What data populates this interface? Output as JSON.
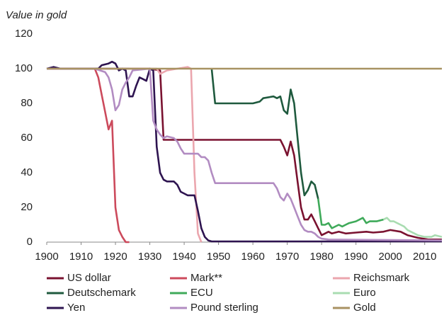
{
  "chart_data": {
    "type": "line",
    "ylabel": "Value in gold",
    "xlim": [
      1900,
      2015
    ],
    "ylim": [
      0,
      120
    ],
    "xticks": [
      1900,
      1910,
      1920,
      1930,
      1940,
      1950,
      1960,
      1970,
      1980,
      1990,
      2000,
      2010
    ],
    "yticks": [
      0,
      20,
      40,
      60,
      80,
      100,
      120
    ],
    "grid": false,
    "legend": "bottom",
    "series": [
      {
        "name": "US dollar",
        "color": "#7a1230",
        "x": [
          1900,
          1910,
          1920,
          1930,
          1933,
          1934,
          1968,
          1969,
          1970,
          1971,
          1972,
          1973,
          1974,
          1975,
          1976,
          1977,
          1978,
          1979,
          1980,
          1981,
          1982,
          1983,
          1985,
          1987,
          1990,
          1993,
          1995,
          1998,
          2000,
          2003,
          2005,
          2008,
          2011,
          2015
        ],
        "values": [
          100,
          100,
          100,
          100,
          99,
          59,
          59,
          55,
          50,
          58,
          50,
          35,
          20,
          13,
          13,
          16,
          12,
          8,
          4,
          5,
          6,
          5,
          6,
          5,
          5.5,
          6,
          5.5,
          6,
          7,
          6,
          4,
          2.5,
          1.5,
          1.5
        ]
      },
      {
        "name": "Mark**",
        "color": "#cc4a5c",
        "x": [
          1900,
          1914,
          1915,
          1916,
          1917,
          1918,
          1919,
          1920,
          1921,
          1922,
          1923,
          1924
        ],
        "values": [
          100,
          100,
          95,
          85,
          75,
          65,
          70,
          20,
          7,
          3,
          0,
          0
        ]
      },
      {
        "name": "Reichsmark",
        "color": "#eba6ae",
        "x": [
          1924,
          1932,
          1933,
          1935,
          1938,
          1941,
          1942,
          1943,
          1944,
          1945
        ],
        "values": [
          100,
          100,
          97,
          99,
          100,
          101,
          100,
          40,
          5,
          0
        ]
      },
      {
        "name": "Deutschemark",
        "color": "#1f5a3e",
        "x": [
          1948,
          1949,
          1960,
          1962,
          1963,
          1966,
          1967,
          1968,
          1969,
          1970,
          1971,
          1972,
          1973,
          1974,
          1975,
          1976,
          1977,
          1978,
          1979
        ],
        "values": [
          100,
          80,
          80,
          81,
          83,
          84,
          83,
          84,
          76,
          74,
          88,
          80,
          60,
          40,
          27,
          30,
          35,
          33,
          25
        ]
      },
      {
        "name": "ECU",
        "color": "#3faa5a",
        "x": [
          1979,
          1980,
          1981,
          1982,
          1983,
          1984,
          1985,
          1986,
          1987,
          1988,
          1990,
          1992,
          1993,
          1994,
          1996,
          1998
        ],
        "values": [
          25,
          10,
          10,
          11,
          8,
          9,
          10,
          9,
          10,
          11,
          12,
          14,
          11,
          12,
          12,
          13
        ]
      },
      {
        "name": "Euro",
        "color": "#a9dcb1",
        "x": [
          1998,
          1999,
          2000,
          2001,
          2002,
          2003,
          2004,
          2005,
          2006,
          2008,
          2010,
          2012,
          2013,
          2015
        ],
        "values": [
          13,
          14,
          12,
          12,
          11,
          10,
          9,
          7,
          6,
          4,
          3,
          3,
          4,
          3
        ]
      },
      {
        "name": "Yen",
        "color": "#2e1450",
        "x": [
          1900,
          1902,
          1904,
          1910,
          1915,
          1916,
          1918,
          1919,
          1920,
          1921,
          1922,
          1923,
          1924,
          1925,
          1926,
          1927,
          1928,
          1929,
          1930,
          1931,
          1932,
          1933,
          1934,
          1935,
          1937,
          1938,
          1939,
          1940,
          1941,
          1943,
          1944,
          1945,
          1946,
          1947,
          1948,
          2015
        ],
        "values": [
          100,
          101,
          100,
          100,
          100,
          102,
          103,
          104,
          103,
          99,
          100,
          99,
          84,
          84,
          90,
          95,
          94,
          93,
          100,
          99,
          55,
          40,
          36,
          35,
          35,
          33,
          29,
          28,
          27,
          27,
          18,
          8,
          3,
          1,
          0.4,
          0.4
        ]
      },
      {
        "name": "Pound sterling",
        "color": "#b28cc2",
        "x": [
          1900,
          1914,
          1917,
          1918,
          1919,
          1920,
          1921,
          1922,
          1923,
          1924,
          1925,
          1930,
          1931,
          1932,
          1933,
          1934,
          1935,
          1937,
          1938,
          1939,
          1940,
          1944,
          1945,
          1946,
          1947,
          1948,
          1949,
          1966,
          1967,
          1968,
          1969,
          1970,
          1971,
          1972,
          1973,
          1974,
          1975,
          1976,
          1977,
          1978,
          1979,
          1980,
          1982,
          2015
        ],
        "values": [
          100,
          100,
          98,
          95,
          88,
          76,
          79,
          88,
          92,
          95,
          99,
          100,
          70,
          65,
          62,
          60,
          61,
          60,
          58,
          54,
          51,
          51,
          49,
          49,
          47,
          40,
          34,
          34,
          31,
          26,
          24,
          28,
          25,
          20,
          15,
          10,
          7,
          6,
          6,
          5,
          3,
          2,
          1.5,
          1
        ]
      },
      {
        "name": "Gold",
        "color": "#a89262",
        "x": [
          1900,
          2015
        ],
        "values": [
          100,
          100
        ]
      }
    ]
  }
}
